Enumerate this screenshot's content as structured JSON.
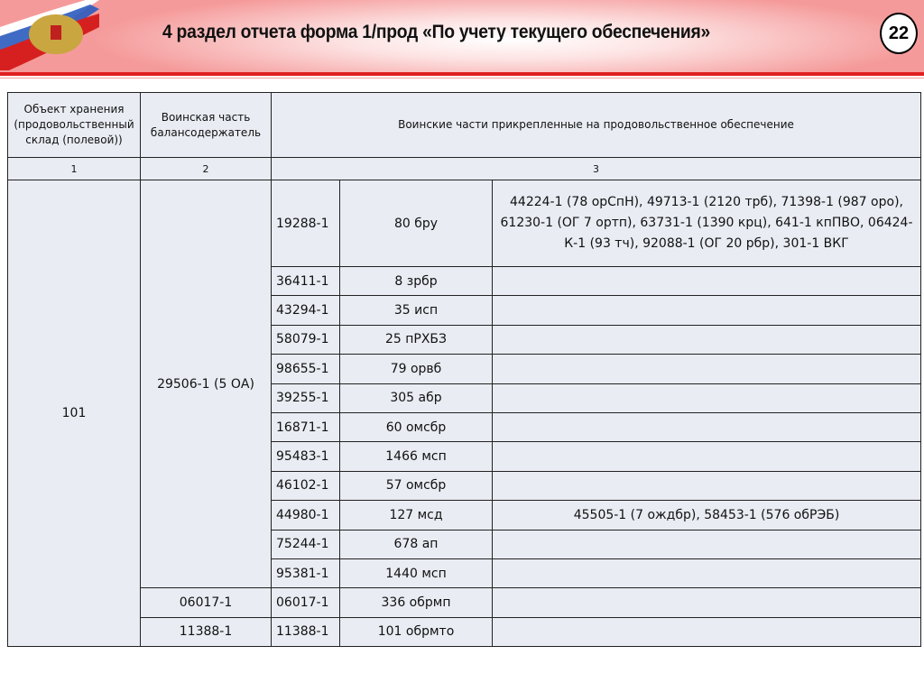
{
  "header": {
    "title": "4 раздел отчета форма 1/прод «По учету текущего обеспечения»",
    "page_number": "22"
  },
  "table": {
    "headers": [
      "Объект хранения (продовольственный склад (полевой))",
      "Воинская часть балансодержатель",
      "Воинские части прикрепленные на продовольственное обеспечение"
    ],
    "numbers": [
      "1",
      "2",
      "3"
    ],
    "object": "101",
    "group1_holder": "29506-1 (5 ОА)",
    "rows": [
      {
        "code": "19288-1",
        "name": "80 бру",
        "attached": "44224-1 (78 орСпН), 49713-1 (2120 трб),  71398-1 (987 оро), 61230-1 (ОГ 7 ортп), 63731-1 (1390 крц), 641-1 кпПВО, 06424-К-1 (93 тч), 92088-1 (ОГ 20 рбр), 301-1 ВКГ"
      },
      {
        "code": "36411-1",
        "name": "8 зрбр",
        "attached": ""
      },
      {
        "code": "43294-1",
        "name": "35 исп",
        "attached": ""
      },
      {
        "code": "58079-1",
        "name": "25 пРХБЗ",
        "attached": ""
      },
      {
        "code": "98655-1",
        "name": "79 орвб",
        "attached": ""
      },
      {
        "code": "39255-1",
        "name": "305 абр",
        "attached": ""
      },
      {
        "code": "16871-1",
        "name": "60 омсбр",
        "attached": ""
      },
      {
        "code": "95483-1",
        "name": "1466 мсп",
        "attached": ""
      },
      {
        "code": "46102-1",
        "name": "57 омсбр",
        "attached": ""
      },
      {
        "code": "44980-1",
        "name": "127 мсд",
        "attached": "45505-1 (7 ождбр), 58453-1 (576 обРЭБ)"
      },
      {
        "code": "75244-1",
        "name": "678 ап",
        "attached": ""
      },
      {
        "code": "95381-1",
        "name": "1440 мсп",
        "attached": ""
      },
      {
        "holder": "06017-1",
        "code": "06017-1",
        "name": "336 обрмп",
        "attached": ""
      },
      {
        "holder": "11388-1",
        "code": "11388-1",
        "name": "101 обрмто",
        "attached": ""
      }
    ]
  }
}
